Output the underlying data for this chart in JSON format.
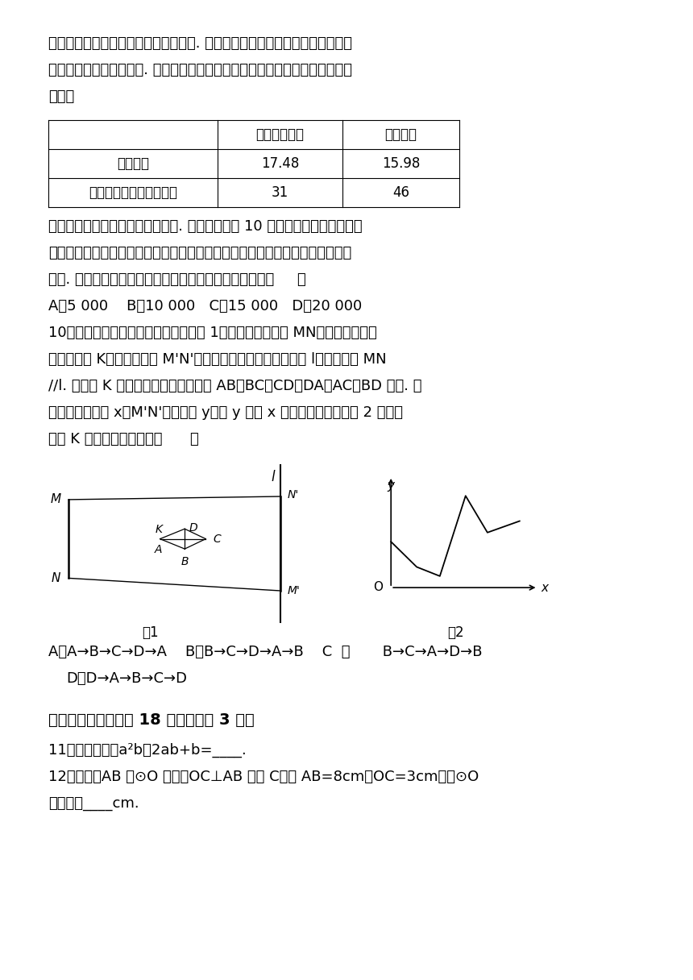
{
  "background_color": "#ffffff",
  "para1": "浪费的能量回收储存于内置的蓄电池中. 汽车在低速行驶时，使用蓄电池带动电",
  "para2": "动机驱动汽车，节约燃油. 某品牌油电混动汽车与普通汽车的相关成本数据估算",
  "para3": "如下：",
  "table_headers": [
    "",
    "油电混动汽车",
    "普通汽车"
  ],
  "table_row1": [
    "购买价格",
    "17.48",
    "15.98"
  ],
  "table_row2": [
    "每百公里燃油成本（元）",
    "31",
    "46"
  ],
  "para4": "某人计划购入一辆上述品牌的汽车. 他估算了未来 10 年的用车成本，在只考虑",
  "para5": "车价和燃油成本的情况下，发现选择油电混动汽车的成本不高于选择普通汽车的",
  "para6": "成本. 则他在估算时，预计平均每年行驶的公里数至少为（     ）",
  "options_9": "A．5 000    B．10 000   C．15 000   D．20 000",
  "para7": "10．小明在暗室做小孔成像实验，如图 1，固定光源（线段 MN）发出的光经过",
  "para8": "小孔（动点 K）成像（线段 M'N'）于足够长的固定挡板（直线 l）上，其中 MN",
  "para9": "//l. 已知点 K 匀速运动，其运动路径由 AB，BC，CD，DA，AC，BD 组成. 记",
  "para10": "它的一段时间为 x，M'N'的长度为 y，若 y 关于 x 的函数图象大致如图 2 所示，",
  "para11": "则点 K 的运动路径可能为（      ）",
  "options_10a": "A．A→B→C→D→A    B．B→C→D→A→B    C  ．       B→C→A→D→B",
  "options_10d": "D．D→A→B→C→D",
  "section2_title": "二、填空题（本题共 18 分，每小题 3 分）",
  "q11": "11．分解因式：a²b－2ab+b=____.",
  "q12": "12．如图，AB 是⊙O 的弦，OC⊥AB 于点 C，若 AB=8cm，OC=3cm，则⊙O",
  "q12b": "的半径为____cm."
}
